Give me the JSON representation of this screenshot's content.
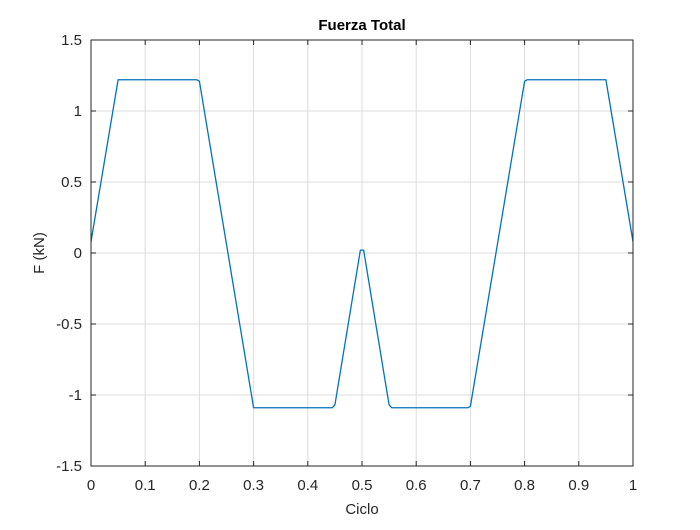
{
  "chart_data": {
    "type": "line",
    "title": "Fuerza Total",
    "xlabel": "Ciclo",
    "ylabel": "F (kN)",
    "xlim": [
      0,
      1
    ],
    "ylim": [
      -1.5,
      1.5
    ],
    "x_ticks": [
      0,
      0.1,
      0.2,
      0.3,
      0.4,
      0.5,
      0.6,
      0.7,
      0.8,
      0.9,
      1
    ],
    "x_tick_labels": [
      "0",
      "0.1",
      "0.2",
      "0.3",
      "0.4",
      "0.5",
      "0.6",
      "0.7",
      "0.8",
      "0.9",
      "1"
    ],
    "y_ticks": [
      -1.5,
      -1,
      -0.5,
      0,
      0.5,
      1,
      1.5
    ],
    "y_tick_labels": [
      "-1.5",
      "-1",
      "-0.5",
      "0",
      "0.5",
      "1",
      "1.5"
    ],
    "grid": true,
    "series": [
      {
        "color": "#0072BD",
        "x": [
          0,
          0.05,
          0.055,
          0.195,
          0.2,
          0.3,
          0.305,
          0.445,
          0.45,
          0.497,
          0.5,
          0.503,
          0.55,
          0.555,
          0.695,
          0.7,
          0.8,
          0.805,
          0.945,
          0.95,
          1
        ],
        "y": [
          0.08,
          1.22,
          1.22,
          1.22,
          1.21,
          -1.09,
          -1.09,
          -1.09,
          -1.07,
          0.02,
          0.02,
          0.02,
          -1.07,
          -1.09,
          -1.09,
          -1.08,
          1.21,
          1.22,
          1.22,
          1.22,
          0.08
        ]
      }
    ]
  }
}
